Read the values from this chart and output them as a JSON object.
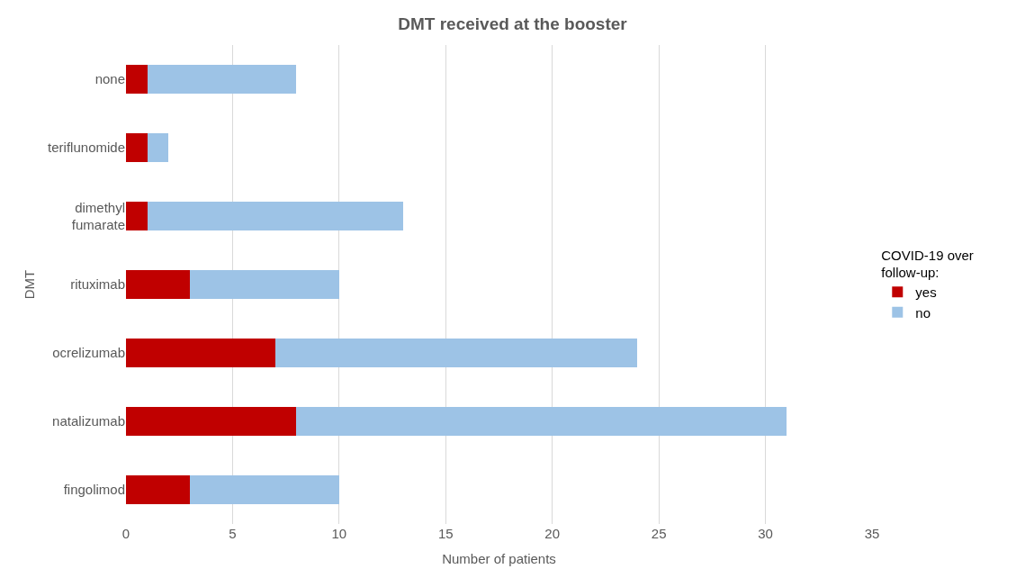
{
  "chart_data": {
    "type": "bar",
    "orientation": "horizontal",
    "stacked": true,
    "title": "DMT received at the booster",
    "xlabel": "Number of patients",
    "ylabel": "DMT",
    "legend_title": "COVID-19 over\nfollow-up:",
    "categories": [
      "none",
      "teriflunomide",
      "dimethyl\nfumarate",
      "rituximab",
      "ocrelizumab",
      "natalizumab",
      "fingolimod"
    ],
    "series": [
      {
        "name": "yes",
        "color": "#c00000",
        "values": [
          1,
          1,
          1,
          3,
          7,
          8,
          3
        ]
      },
      {
        "name": "no",
        "color": "#9dc3e6",
        "values": [
          7,
          1,
          12,
          7,
          17,
          23,
          7
        ]
      }
    ],
    "xlim": [
      0,
      35
    ],
    "xticks": [
      0,
      5,
      10,
      15,
      20,
      25,
      30,
      35
    ],
    "grid": "x",
    "legend": "right"
  }
}
